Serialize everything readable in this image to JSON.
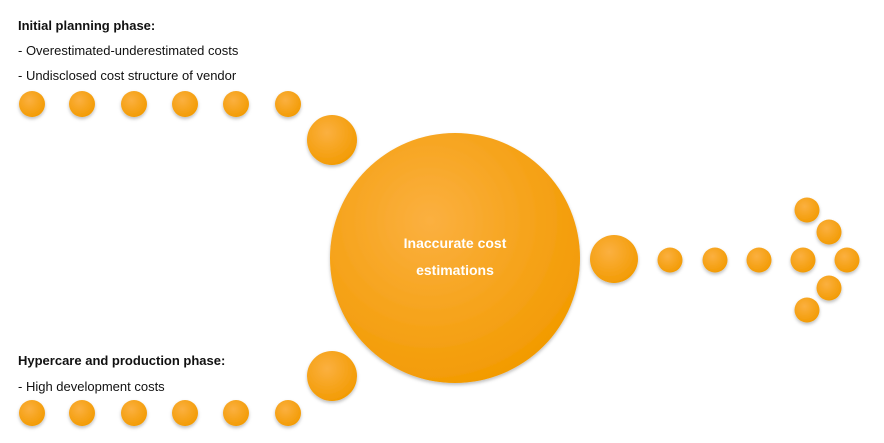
{
  "top_section": {
    "title": "Initial planning phase:",
    "items": [
      "- Overestimated-underestimated costs",
      "- Undisclosed cost structure of vendor"
    ]
  },
  "bottom_section": {
    "title": "Hypercare and production phase:",
    "items": [
      "- High development costs"
    ]
  },
  "center": {
    "label": "Inaccurate cost estimations"
  }
}
